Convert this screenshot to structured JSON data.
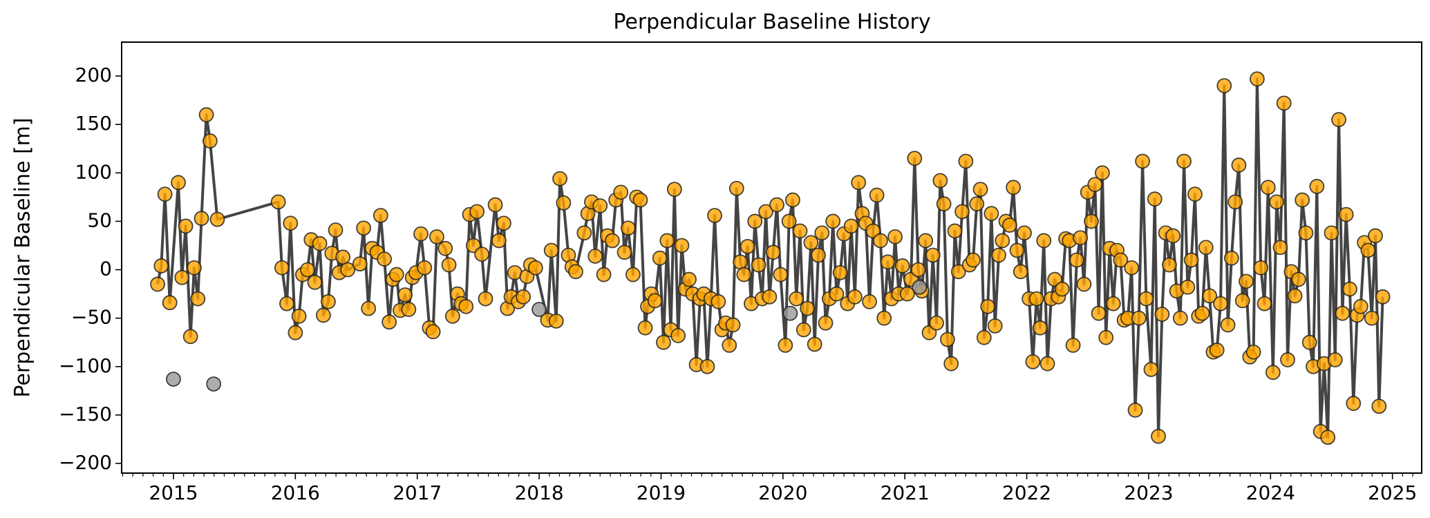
{
  "chart_data": {
    "type": "scatter",
    "title": "Perpendicular Baseline History",
    "ylabel": "Perpendicular Baseline [m]",
    "xlim": [
      2014.575,
      2025.24
    ],
    "ylim": [
      -210,
      235
    ],
    "xticks": [
      2015,
      2016,
      2017,
      2018,
      2019,
      2020,
      2021,
      2022,
      2023,
      2024,
      2025
    ],
    "yticks": [
      -200,
      -150,
      -100,
      -50,
      0,
      50,
      100,
      150,
      200
    ],
    "line_color": "#444444",
    "series": [
      {
        "color": "#ffa500",
        "connected": true,
        "x": [
          2014.87,
          2014.9,
          2014.93,
          2014.97,
          2015.04,
          2015.07,
          2015.1,
          2015.14,
          2015.17,
          2015.2,
          2015.23,
          2015.27,
          2015.3,
          2015.36,
          2015.86,
          2015.89,
          2015.93,
          2015.96,
          2016.0,
          2016.03,
          2016.06,
          2016.1,
          2016.13,
          2016.16,
          2016.2,
          2016.23,
          2016.27,
          2016.3,
          2016.33,
          2016.36,
          2016.39,
          2016.43,
          2016.53,
          2016.56,
          2016.6,
          2016.63,
          2016.67,
          2016.7,
          2016.73,
          2016.77,
          2016.8,
          2016.83,
          2016.86,
          2016.9,
          2016.93,
          2016.96,
          2016.99,
          2017.03,
          2017.06,
          2017.1,
          2017.13,
          2017.16,
          2017.23,
          2017.26,
          2017.29,
          2017.33,
          2017.36,
          2017.4,
          2017.43,
          2017.46,
          2017.49,
          2017.53,
          2017.56,
          2017.64,
          2017.67,
          2017.71,
          2017.74,
          2017.77,
          2017.8,
          2017.83,
          2017.87,
          2017.9,
          2017.93,
          2017.97,
          2018.07,
          2018.1,
          2018.14,
          2018.17,
          2018.2,
          2018.24,
          2018.27,
          2018.3,
          2018.37,
          2018.4,
          2018.43,
          2018.46,
          2018.5,
          2018.53,
          2018.56,
          2018.6,
          2018.63,
          2018.67,
          2018.7,
          2018.73,
          2018.77,
          2018.8,
          2018.83,
          2018.87,
          2018.89,
          2018.92,
          2018.95,
          2018.99,
          2019.02,
          2019.05,
          2019.08,
          2019.11,
          2019.14,
          2019.17,
          2019.2,
          2019.23,
          2019.26,
          2019.29,
          2019.32,
          2019.35,
          2019.38,
          2019.41,
          2019.44,
          2019.47,
          2019.5,
          2019.53,
          2019.56,
          2019.59,
          2019.62,
          2019.65,
          2019.68,
          2019.71,
          2019.74,
          2019.77,
          2019.8,
          2019.83,
          2019.86,
          2019.89,
          2019.92,
          2019.95,
          2019.98,
          2020.02,
          2020.05,
          2020.08,
          2020.11,
          2020.14,
          2020.17,
          2020.2,
          2020.23,
          2020.26,
          2020.29,
          2020.32,
          2020.35,
          2020.38,
          2020.41,
          2020.44,
          2020.47,
          2020.5,
          2020.53,
          2020.56,
          2020.59,
          2020.62,
          2020.65,
          2020.68,
          2020.71,
          2020.74,
          2020.77,
          2020.8,
          2020.83,
          2020.86,
          2020.89,
          2020.92,
          2020.95,
          2020.98,
          2021.02,
          2021.05,
          2021.08,
          2021.11,
          2021.14,
          2021.17,
          2021.2,
          2021.23,
          2021.26,
          2021.29,
          2021.32,
          2021.35,
          2021.38,
          2021.41,
          2021.44,
          2021.47,
          2021.5,
          2021.53,
          2021.56,
          2021.59,
          2021.62,
          2021.65,
          2021.68,
          2021.71,
          2021.74,
          2021.77,
          2021.8,
          2021.83,
          2021.86,
          2021.89,
          2021.92,
          2021.95,
          2021.98,
          2022.02,
          2022.05,
          2022.08,
          2022.11,
          2022.14,
          2022.17,
          2022.2,
          2022.23,
          2022.26,
          2022.29,
          2022.32,
          2022.35,
          2022.38,
          2022.41,
          2022.44,
          2022.47,
          2022.5,
          2022.53,
          2022.56,
          2022.59,
          2022.62,
          2022.65,
          2022.68,
          2022.71,
          2022.74,
          2022.77,
          2022.8,
          2022.83,
          2022.86,
          2022.89,
          2022.92,
          2022.95,
          2022.98,
          2023.02,
          2023.05,
          2023.08,
          2023.11,
          2023.14,
          2023.17,
          2023.2,
          2023.23,
          2023.26,
          2023.29,
          2023.32,
          2023.35,
          2023.38,
          2023.41,
          2023.44,
          2023.47,
          2023.5,
          2023.53,
          2023.56,
          2023.59,
          2023.62,
          2023.65,
          2023.68,
          2023.71,
          2023.74,
          2023.77,
          2023.8,
          2023.83,
          2023.86,
          2023.89,
          2023.92,
          2023.95,
          2023.98,
          2024.02,
          2024.05,
          2024.08,
          2024.11,
          2024.14,
          2024.17,
          2024.2,
          2024.23,
          2024.26,
          2024.29,
          2024.32,
          2024.35,
          2024.38,
          2024.41,
          2024.44,
          2024.47,
          2024.5,
          2024.53,
          2024.56,
          2024.59,
          2024.62,
          2024.65,
          2024.68,
          2024.71,
          2024.74,
          2024.77,
          2024.8,
          2024.83,
          2024.86,
          2024.89,
          2024.92
        ],
        "values": [
          -15,
          4,
          78,
          -34,
          90,
          -8,
          45,
          -69,
          2,
          -30,
          53,
          160,
          133,
          52,
          70,
          2,
          -35,
          48,
          -65,
          -48,
          -5,
          0,
          31,
          -13,
          27,
          -47,
          -33,
          17,
          41,
          -3,
          13,
          0,
          6,
          43,
          -40,
          22,
          18,
          56,
          11,
          -54,
          -10,
          -5,
          -42,
          -26,
          -41,
          -8,
          -3,
          37,
          2,
          -60,
          -64,
          34,
          22,
          5,
          -48,
          -25,
          -35,
          -38,
          57,
          25,
          60,
          16,
          -30,
          67,
          30,
          48,
          -40,
          -28,
          -3,
          -33,
          -28,
          -7,
          5,
          2,
          -52,
          20,
          -53,
          94,
          69,
          15,
          3,
          -2,
          38,
          58,
          70,
          14,
          66,
          -5,
          35,
          30,
          72,
          80,
          18,
          43,
          -5,
          75,
          72,
          -60,
          -38,
          -25,
          -32,
          12,
          -75,
          30,
          -62,
          83,
          -68,
          25,
          -20,
          -10,
          -25,
          -98,
          -30,
          -25,
          -100,
          -30,
          56,
          -33,
          -62,
          -55,
          -78,
          -57,
          84,
          8,
          -5,
          24,
          -35,
          50,
          5,
          -30,
          60,
          -28,
          18,
          67,
          -5,
          -78,
          50,
          72,
          -30,
          40,
          -62,
          -40,
          28,
          -77,
          15,
          38,
          -55,
          -30,
          50,
          -25,
          -3,
          37,
          -35,
          45,
          -28,
          90,
          58,
          48,
          -33,
          40,
          77,
          30,
          -50,
          8,
          -30,
          34,
          -25,
          4,
          -25,
          -10,
          115,
          0,
          -22,
          30,
          -65,
          15,
          -55,
          92,
          68,
          -72,
          -97,
          40,
          -2,
          60,
          112,
          5,
          10,
          68,
          83,
          -70,
          -38,
          58,
          -58,
          15,
          30,
          50,
          46,
          85,
          20,
          -2,
          38,
          -30,
          -95,
          -30,
          -60,
          30,
          -97,
          -30,
          -10,
          -28,
          -20,
          32,
          30,
          -78,
          10,
          33,
          -15,
          80,
          50,
          88,
          -45,
          100,
          -70,
          22,
          -35,
          20,
          10,
          -52,
          -50,
          2,
          -145,
          -50,
          112,
          -30,
          -103,
          73,
          -172,
          -46,
          38,
          5,
          35,
          -22,
          -50,
          112,
          -18,
          10,
          78,
          -48,
          -45,
          23,
          -27,
          -85,
          -83,
          -35,
          190,
          -57,
          12,
          70,
          108,
          -32,
          -12,
          -90,
          -85,
          197,
          2,
          -35,
          85,
          -106,
          70,
          23,
          172,
          -93,
          -2,
          -27,
          -10,
          72,
          38,
          -75,
          -100,
          86,
          -167,
          -97,
          -173,
          38,
          -93,
          155,
          -45,
          57,
          -20,
          -138,
          -47,
          -38,
          28,
          20,
          -50,
          35,
          -141,
          -28
        ]
      },
      {
        "color": "#999999",
        "connected": false,
        "x": [
          2015.0,
          2015.33,
          2018.0,
          2020.06,
          2021.12
        ],
        "values": [
          -113,
          -118,
          -41,
          -45,
          -18
        ]
      }
    ]
  }
}
